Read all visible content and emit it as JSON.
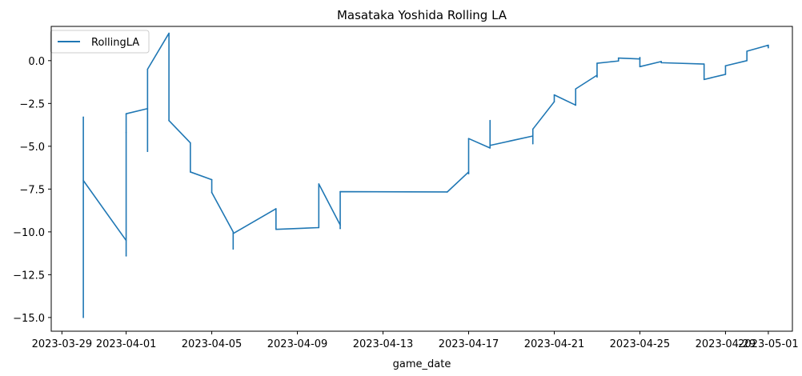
{
  "chart_data": {
    "type": "line",
    "title": "Masataka Yoshida Rolling LA",
    "xlabel": "game_date",
    "ylabel": "",
    "legend": {
      "placement": "top-left",
      "entries": [
        "RollingLA"
      ]
    },
    "grid": false,
    "xlim": [
      "2023-03-28 12:00",
      "2023-05-02 03:00"
    ],
    "ylim": [
      -15.8,
      2.0
    ],
    "x_ticks": [
      "2023-03-29",
      "2023-04-01",
      "2023-04-05",
      "2023-04-09",
      "2023-04-13",
      "2023-04-17",
      "2023-04-21",
      "2023-04-25",
      "2023-04-29",
      "2023-05-01"
    ],
    "y_ticks": [
      0.0,
      -2.5,
      -5.0,
      -7.5,
      -10.0,
      -12.5,
      -15.0
    ],
    "y_tick_labels": [
      "0.0",
      "−2.5",
      "−5.0",
      "−7.5",
      "−10.0",
      "−12.5",
      "−15.0"
    ],
    "color": "#1f77b4",
    "series": [
      {
        "name": "RollingLA",
        "points": [
          [
            "2023-03-30 00:00",
            -15.0
          ],
          [
            "2023-03-30 00:00",
            -3.3
          ],
          [
            "2023-03-30 00:00",
            -7.0
          ],
          [
            "2023-04-01 00:00",
            -10.5
          ],
          [
            "2023-04-01 00:00",
            -11.4
          ],
          [
            "2023-04-01 00:00",
            -4.2
          ],
          [
            "2023-04-01 00:00",
            -3.1
          ],
          [
            "2023-04-02 00:00",
            -2.8
          ],
          [
            "2023-04-02 00:00",
            -5.3
          ],
          [
            "2023-04-02 00:00",
            -0.5
          ],
          [
            "2023-04-03 00:00",
            1.6
          ],
          [
            "2023-04-03 00:00",
            -3.5
          ],
          [
            "2023-04-04 00:00",
            -4.8
          ],
          [
            "2023-04-04 00:00",
            -6.5
          ],
          [
            "2023-04-05 00:00",
            -6.95
          ],
          [
            "2023-04-05 00:00",
            -7.7
          ],
          [
            "2023-04-06 00:00",
            -10.0
          ],
          [
            "2023-04-06 00:00",
            -11.0
          ],
          [
            "2023-04-06 00:00",
            -10.1
          ],
          [
            "2023-04-08 00:00",
            -8.65
          ],
          [
            "2023-04-08 00:00",
            -9.85
          ],
          [
            "2023-04-10 00:00",
            -9.75
          ],
          [
            "2023-04-10 00:00",
            -7.2
          ],
          [
            "2023-04-11 00:00",
            -9.6
          ],
          [
            "2023-04-11 00:00",
            -9.8
          ],
          [
            "2023-04-11 00:00",
            -7.65
          ],
          [
            "2023-04-16 00:00",
            -7.67
          ],
          [
            "2023-04-17 00:00",
            -6.5
          ],
          [
            "2023-04-17 00:00",
            -6.6
          ],
          [
            "2023-04-17 00:00",
            -4.55
          ],
          [
            "2023-04-18 00:00",
            -5.1
          ],
          [
            "2023-04-18 00:00",
            -3.5
          ],
          [
            "2023-04-18 00:00",
            -4.95
          ],
          [
            "2023-04-20 00:00",
            -4.4
          ],
          [
            "2023-04-20 00:00",
            -4.85
          ],
          [
            "2023-04-20 00:00",
            -4.0
          ],
          [
            "2023-04-21 00:00",
            -2.4
          ],
          [
            "2023-04-21 00:00",
            -2.0
          ],
          [
            "2023-04-22 00:00",
            -2.6
          ],
          [
            "2023-04-22 00:00",
            -1.65
          ],
          [
            "2023-04-23 00:00",
            -0.85
          ],
          [
            "2023-04-23 00:00",
            -0.95
          ],
          [
            "2023-04-23 00:00",
            -0.15
          ],
          [
            "2023-04-24 00:00",
            -0.02
          ],
          [
            "2023-04-24 00:00",
            0.15
          ],
          [
            "2023-04-25 00:00",
            0.1
          ],
          [
            "2023-04-25 00:00",
            0.18
          ],
          [
            "2023-04-25 00:00",
            -0.35
          ],
          [
            "2023-04-26 00:00",
            -0.05
          ],
          [
            "2023-04-26 00:00",
            -0.12
          ],
          [
            "2023-04-28 00:00",
            -0.2
          ],
          [
            "2023-04-28 00:00",
            -1.1
          ],
          [
            "2023-04-29 00:00",
            -0.8
          ],
          [
            "2023-04-29 00:00",
            -0.3
          ],
          [
            "2023-04-30 00:00",
            0.0
          ],
          [
            "2023-04-30 00:00",
            0.55
          ],
          [
            "2023-05-01 00:00",
            0.9
          ],
          [
            "2023-05-01 00:00",
            0.75
          ]
        ]
      }
    ]
  }
}
